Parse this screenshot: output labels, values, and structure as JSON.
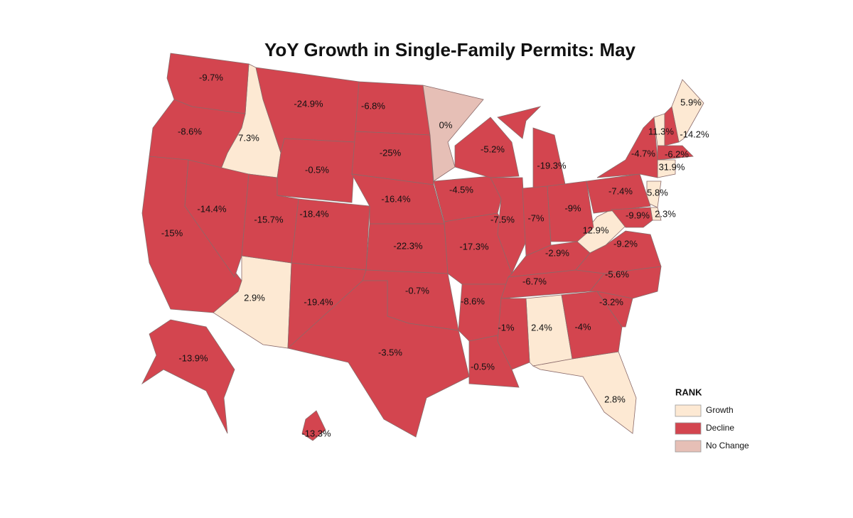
{
  "chart_data": {
    "type": "choropleth",
    "title": "YoY Growth in Single-Family Permits: May",
    "legend_title": "RANK",
    "series": [
      {
        "name": "Growth",
        "color": "#fde9d3",
        "values": [
          7.3,
          2.9,
          2.4,
          2.8,
          12.9,
          5.8,
          2.3,
          11.3,
          5.9,
          31.9
        ],
        "value_labels": [
          "7.3%",
          "2.9%",
          "2.4%",
          "2.8%",
          "12.9%",
          "5.8%",
          "2.3%",
          "11.3%",
          "5.9%",
          "31.9%"
        ]
      },
      {
        "name": "Decline",
        "color": "#d3454f",
        "values": [
          -9.7,
          -8.6,
          -15,
          -14.4,
          -15.7,
          -24.9,
          -0.5,
          -18.4,
          -19.4,
          -6.8,
          -25,
          -16.4,
          -22.3,
          -0.7,
          -3.5,
          -4.5,
          -17.3,
          -8.6,
          -0.5,
          -5.2,
          -7.5,
          -19.3,
          -7,
          -9,
          -2.9,
          -6.7,
          -1,
          -4,
          -3.2,
          -5.6,
          -9.2,
          -7.4,
          -4.7,
          -9.9,
          -6.2,
          -14.2,
          -13.9,
          -13.3
        ],
        "value_labels": [
          "-9.7%",
          "-8.6%",
          "-15%",
          "-14.4%",
          "-15.7%",
          "-24.9%",
          "-0.5%",
          "-18.4%",
          "-19.4%",
          "-6.8%",
          "-25%",
          "-16.4%",
          "-22.3%",
          "-0.7%",
          "-3.5%",
          "-4.5%",
          "-17.3%",
          "-8.6%",
          "-0.5%",
          "-5.2%",
          "-7.5%",
          "-19.3%",
          "-7%",
          "-9%",
          "-2.9%",
          "-6.7%",
          "-1%",
          "-4%",
          "-3.2%",
          "-5.6%",
          "-9.2%",
          "-7.4%",
          "-4.7%",
          "-9.9%",
          "-6.2%",
          "-14.2%",
          "-13.9%",
          "-13.3%"
        ]
      },
      {
        "name": "No Change",
        "color": "#e6bfb6",
        "values": [
          0
        ],
        "value_labels": [
          "0%"
        ]
      }
    ]
  }
}
